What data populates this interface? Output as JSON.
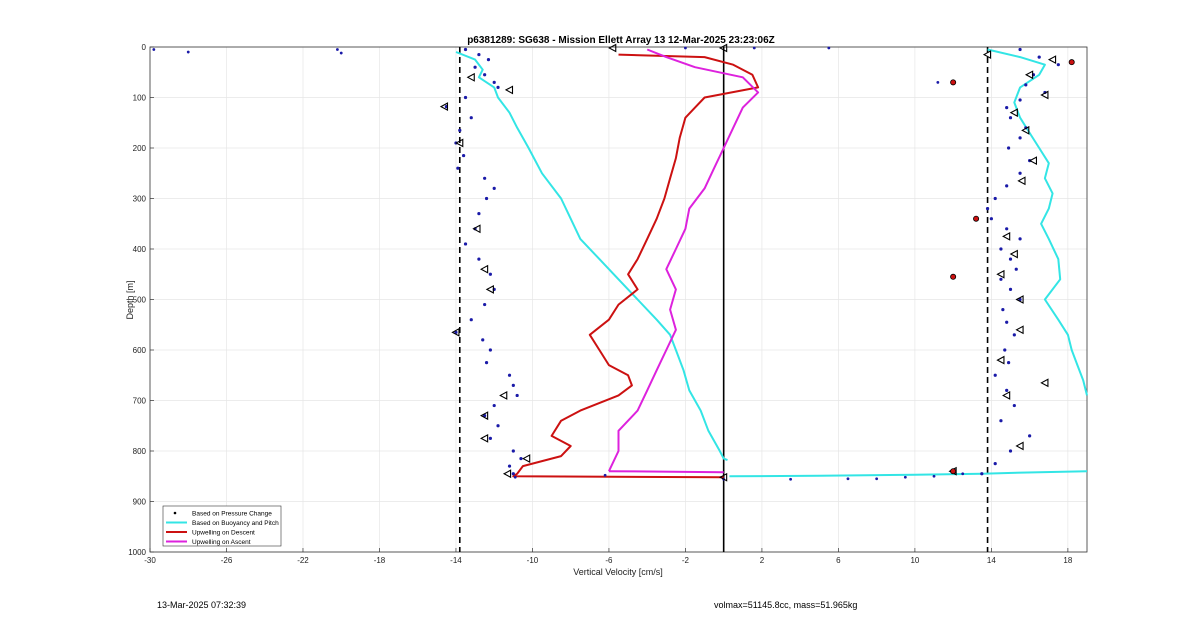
{
  "footer": {
    "timestamp": "13-Mar-2025 07:32:39",
    "volmax": "volmax=51145.8cc, mass=51.965kg"
  },
  "chart_data": {
    "type": "line",
    "title": "p6381289: SG638 - Mission Ellett Array 13 12-Mar-2025 23:23:06Z",
    "xlabel": "Vertical Velocity [cm/s]",
    "ylabel": "Depth [m]",
    "xlim": [
      -30,
      19
    ],
    "ylim": [
      0,
      1000
    ],
    "y_reversed": true,
    "grid": true,
    "x_ticks": [
      -30,
      -26,
      -22,
      -18,
      -14,
      -10,
      -6,
      -2,
      2,
      6,
      10,
      14,
      18
    ],
    "y_ticks": [
      0,
      100,
      200,
      300,
      400,
      500,
      600,
      700,
      800,
      900,
      1000
    ],
    "legend_position": "bottom-left",
    "reference_lines": [
      {
        "x": -13.8,
        "style": "dashed",
        "color": "#000000"
      },
      {
        "x": 13.8,
        "style": "dashed",
        "color": "#000000"
      },
      {
        "x": 0,
        "style": "solid",
        "color": "#000000"
      }
    ],
    "series": [
      {
        "name": "Based on Pressure Change",
        "kind": "points",
        "color": "#1a1aa8",
        "segments": [
          [
            [
              -13.5,
              5
            ],
            [
              -12.8,
              15
            ],
            [
              -12.3,
              25
            ],
            [
              -13.0,
              40
            ],
            [
              -12.5,
              55
            ],
            [
              -12.0,
              70
            ],
            [
              -11.8,
              80
            ],
            [
              -13.5,
              100
            ],
            [
              -14.5,
              118
            ],
            [
              -13.2,
              140
            ],
            [
              -13.8,
              165
            ],
            [
              -14.0,
              190
            ],
            [
              -13.6,
              215
            ],
            [
              -13.9,
              240
            ],
            [
              -12.5,
              260
            ],
            [
              -12.0,
              280
            ],
            [
              -12.4,
              300
            ],
            [
              -12.8,
              330
            ],
            [
              -13.0,
              360
            ],
            [
              -13.5,
              390
            ],
            [
              -12.8,
              420
            ],
            [
              -12.2,
              450
            ],
            [
              -12.0,
              480
            ],
            [
              -12.5,
              510
            ],
            [
              -13.2,
              540
            ],
            [
              -14.0,
              565
            ],
            [
              -12.6,
              580
            ],
            [
              -12.2,
              600
            ],
            [
              -12.4,
              625
            ],
            [
              -11.2,
              650
            ],
            [
              -11.0,
              670
            ],
            [
              -10.8,
              690
            ],
            [
              -12.0,
              710
            ],
            [
              -12.5,
              730
            ],
            [
              -11.8,
              750
            ],
            [
              -12.2,
              775
            ],
            [
              -11.0,
              800
            ],
            [
              -10.6,
              815
            ],
            [
              -11.2,
              830
            ],
            [
              -11.0,
              845
            ]
          ],
          [
            [
              15.5,
              5
            ],
            [
              16.5,
              20
            ],
            [
              17.5,
              35
            ],
            [
              16.2,
              55
            ],
            [
              15.8,
              75
            ],
            [
              16.8,
              90
            ],
            [
              15.5,
              105
            ],
            [
              14.8,
              120
            ],
            [
              15.0,
              140
            ],
            [
              15.8,
              160
            ],
            [
              15.5,
              180
            ],
            [
              14.9,
              200
            ],
            [
              16.0,
              225
            ],
            [
              15.5,
              250
            ],
            [
              14.8,
              275
            ],
            [
              14.2,
              300
            ],
            [
              13.8,
              320
            ],
            [
              14.0,
              340
            ],
            [
              14.8,
              360
            ],
            [
              15.5,
              380
            ],
            [
              14.5,
              400
            ],
            [
              15.0,
              420
            ],
            [
              15.3,
              440
            ],
            [
              14.5,
              460
            ],
            [
              15.0,
              480
            ],
            [
              15.5,
              500
            ],
            [
              14.6,
              520
            ],
            [
              14.8,
              545
            ],
            [
              15.2,
              570
            ],
            [
              14.7,
              600
            ],
            [
              14.9,
              625
            ],
            [
              14.2,
              650
            ],
            [
              14.8,
              680
            ],
            [
              15.2,
              710
            ],
            [
              14.5,
              740
            ],
            [
              16.0,
              770
            ],
            [
              15.0,
              800
            ],
            [
              14.2,
              825
            ],
            [
              13.5,
              845
            ]
          ]
        ],
        "outliers": [
          [
            -29.8,
            5
          ],
          [
            -28.0,
            10
          ],
          [
            -20.2,
            5
          ],
          [
            -20.0,
            12
          ],
          [
            -10.9,
            852
          ],
          [
            -6.2,
            848
          ],
          [
            0.0,
            856
          ],
          [
            3.5,
            856
          ],
          [
            6.5,
            855
          ],
          [
            8.0,
            855
          ],
          [
            9.5,
            852
          ],
          [
            11.0,
            850
          ],
          [
            12.5,
            845
          ],
          [
            11.2,
            70
          ],
          [
            12.0,
            72
          ],
          [
            1.6,
            2
          ],
          [
            -2.0,
            2
          ],
          [
            5.5,
            2
          ]
        ]
      },
      {
        "name": "Based on Buoyancy and Pitch",
        "kind": "line",
        "color": "#33e5e5",
        "segments": [
          [
            [
              -14.0,
              10
            ],
            [
              -13.0,
              25
            ],
            [
              -12.6,
              45
            ],
            [
              -12.8,
              60
            ],
            [
              -12.0,
              80
            ],
            [
              -11.8,
              100
            ],
            [
              -11.2,
              130
            ],
            [
              -10.8,
              160
            ],
            [
              -10.2,
              200
            ],
            [
              -9.5,
              250
            ],
            [
              -8.5,
              300
            ],
            [
              -8.0,
              340
            ],
            [
              -7.5,
              380
            ],
            [
              -6.5,
              420
            ],
            [
              -5.5,
              460
            ],
            [
              -4.5,
              500
            ],
            [
              -3.5,
              540
            ],
            [
              -2.8,
              570
            ],
            [
              -2.5,
              600
            ],
            [
              -2.1,
              640
            ],
            [
              -1.8,
              680
            ],
            [
              -1.2,
              720
            ],
            [
              -0.8,
              760
            ],
            [
              -0.2,
              800
            ],
            [
              0.0,
              815
            ],
            [
              0.2,
              818
            ]
          ],
          [
            [
              0.3,
              850
            ],
            [
              5.0,
              849
            ],
            [
              10.0,
              847
            ],
            [
              13.5,
              845
            ],
            [
              16.5,
              842
            ],
            [
              19.0,
              840
            ]
          ],
          [
            [
              13.8,
              5
            ],
            [
              15.5,
              20
            ],
            [
              16.8,
              35
            ],
            [
              16.5,
              55
            ],
            [
              15.5,
              80
            ],
            [
              15.2,
              110
            ],
            [
              15.5,
              140
            ],
            [
              16.0,
              170
            ],
            [
              16.5,
              200
            ],
            [
              17.0,
              230
            ],
            [
              16.8,
              260
            ],
            [
              17.2,
              290
            ],
            [
              17.0,
              320
            ],
            [
              16.6,
              350
            ],
            [
              17.0,
              380
            ],
            [
              17.5,
              420
            ],
            [
              17.6,
              460
            ],
            [
              16.8,
              500
            ],
            [
              17.5,
              540
            ],
            [
              18.0,
              570
            ],
            [
              18.2,
              600
            ],
            [
              18.5,
              630
            ],
            [
              18.8,
              660
            ],
            [
              19.0,
              690
            ]
          ]
        ]
      },
      {
        "name": "Upwelling on Descent",
        "kind": "line",
        "color": "#cc1111",
        "segments": [
          [
            [
              -5.5,
              15
            ],
            [
              -1.0,
              20
            ],
            [
              0.5,
              35
            ],
            [
              1.5,
              55
            ],
            [
              1.8,
              80
            ],
            [
              -1.0,
              100
            ],
            [
              -1.5,
              120
            ],
            [
              -2.0,
              140
            ],
            [
              -2.3,
              180
            ],
            [
              -2.5,
              220
            ],
            [
              -2.8,
              260
            ],
            [
              -3.1,
              300
            ],
            [
              -3.5,
              340
            ],
            [
              -4.0,
              380
            ],
            [
              -4.5,
              420
            ],
            [
              -5.0,
              450
            ],
            [
              -4.5,
              480
            ],
            [
              -5.5,
              510
            ],
            [
              -6.0,
              540
            ],
            [
              -7.0,
              570
            ],
            [
              -6.5,
              600
            ],
            [
              -6.0,
              630
            ],
            [
              -5.0,
              650
            ],
            [
              -4.8,
              670
            ],
            [
              -5.5,
              690
            ],
            [
              -7.5,
              720
            ],
            [
              -8.5,
              740
            ],
            [
              -9.0,
              770
            ],
            [
              -8.0,
              790
            ],
            [
              -8.5,
              810
            ],
            [
              -10.5,
              830
            ],
            [
              -10.8,
              845
            ],
            [
              -11.0,
              850
            ],
            [
              0.0,
              852
            ]
          ]
        ]
      },
      {
        "name": "Upwelling on Ascent",
        "kind": "line",
        "color": "#dd22dd",
        "segments": [
          [
            [
              -6.0,
              840
            ],
            [
              0.0,
              842
            ]
          ],
          [
            [
              -6.0,
              840
            ],
            [
              -5.5,
              800
            ],
            [
              -5.5,
              760
            ],
            [
              -4.5,
              720
            ],
            [
              -4.0,
              680
            ],
            [
              -3.5,
              640
            ],
            [
              -3.0,
              600
            ],
            [
              -2.5,
              560
            ],
            [
              -2.8,
              520
            ],
            [
              -2.5,
              480
            ],
            [
              -3.0,
              440
            ],
            [
              -2.5,
              400
            ],
            [
              -2.0,
              360
            ],
            [
              -1.8,
              320
            ],
            [
              -1.0,
              280
            ],
            [
              -0.5,
              240
            ],
            [
              0.0,
              200
            ],
            [
              0.5,
              160
            ],
            [
              1.0,
              120
            ],
            [
              1.8,
              90
            ],
            [
              1.0,
              60
            ],
            [
              -1.5,
              40
            ],
            [
              -3.0,
              20
            ],
            [
              -4.0,
              5
            ]
          ]
        ]
      }
    ],
    "markers": [
      {
        "x": -13.2,
        "y": 60
      },
      {
        "x": -11.2,
        "y": 85
      },
      {
        "x": -14.6,
        "y": 118
      },
      {
        "x": -13.8,
        "y": 190
      },
      {
        "x": -12.9,
        "y": 360
      },
      {
        "x": -12.5,
        "y": 440
      },
      {
        "x": -12.2,
        "y": 480
      },
      {
        "x": -14.0,
        "y": 565
      },
      {
        "x": -11.5,
        "y": 690
      },
      {
        "x": -12.5,
        "y": 730
      },
      {
        "x": -12.5,
        "y": 775
      },
      {
        "x": -10.3,
        "y": 815
      },
      {
        "x": -11.3,
        "y": 845
      },
      {
        "x": -5.8,
        "y": 2
      },
      {
        "x": 0.0,
        "y": 2
      },
      {
        "x": 0.0,
        "y": 852
      },
      {
        "x": 13.8,
        "y": 15
      },
      {
        "x": 16.0,
        "y": 55
      },
      {
        "x": 16.8,
        "y": 95
      },
      {
        "x": 15.2,
        "y": 130
      },
      {
        "x": 15.8,
        "y": 165
      },
      {
        "x": 16.2,
        "y": 225
      },
      {
        "x": 15.6,
        "y": 265
      },
      {
        "x": 14.8,
        "y": 375
      },
      {
        "x": 15.2,
        "y": 410
      },
      {
        "x": 14.5,
        "y": 450
      },
      {
        "x": 15.5,
        "y": 500
      },
      {
        "x": 15.5,
        "y": 560
      },
      {
        "x": 16.8,
        "y": 665
      },
      {
        "x": 14.8,
        "y": 690
      },
      {
        "x": 15.5,
        "y": 790
      },
      {
        "x": 12.0,
        "y": 840
      },
      {
        "x": 17.2,
        "y": 25
      },
      {
        "x": 14.5,
        "y": 620
      }
    ],
    "highlight_points": [
      {
        "x": 18.2,
        "y": 30
      },
      {
        "x": 12.0,
        "y": 70
      },
      {
        "x": 13.2,
        "y": 340
      },
      {
        "x": 12.0,
        "y": 455
      },
      {
        "x": 12.0,
        "y": 840
      }
    ]
  }
}
